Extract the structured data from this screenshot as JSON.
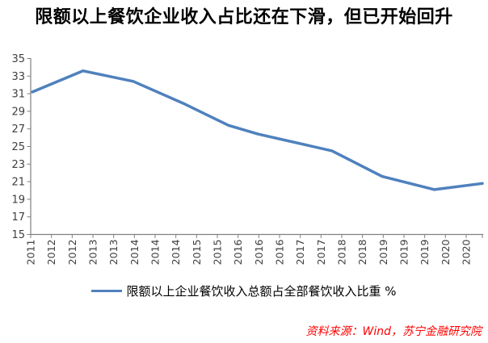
{
  "title": "限额以上餐饮企业收入占比还在下滑，但已开始回升",
  "source": "资料来源：Wind，苏宁金融研究院",
  "legend": {
    "label": "限额以上企业餐饮收入总额占全部餐饮收入比重 %"
  },
  "colors": {
    "line_blue": "#4F81BD",
    "axis_gray": "#808080",
    "tick_label": "#404040",
    "title_black": "#000000",
    "source_red": "#FF0000"
  },
  "chart_data": {
    "type": "line",
    "title": "限额以上餐饮企业收入占比还在下滑，但已开始回升",
    "xlabel": "",
    "ylabel": "",
    "ylim": [
      15,
      35
    ],
    "ytick_step": 2,
    "yticks": [
      35,
      33,
      31,
      29,
      27,
      25,
      23,
      21,
      19,
      17,
      15
    ],
    "x_tick_labels": [
      "2011",
      "2012",
      "2012",
      "2013",
      "2013",
      "2014",
      "2014",
      "2014",
      "2015",
      "2015",
      "2016",
      "2016",
      "2016",
      "2017",
      "2017",
      "2018",
      "2018",
      "2019",
      "2019",
      "2019",
      "2020",
      "2020"
    ],
    "grid": false,
    "legend_position": "bottom",
    "series": [
      {
        "name": "限额以上企业餐饮收入总额占全部餐饮收入比重 %",
        "color": "#4F81BD",
        "points": [
          {
            "x_frac": 0.004,
            "value": 31.2
          },
          {
            "x_frac": 0.116,
            "value": 33.6
          },
          {
            "x_frac": 0.227,
            "value": 32.4
          },
          {
            "x_frac": 0.338,
            "value": 29.9
          },
          {
            "x_frac": 0.438,
            "value": 27.4
          },
          {
            "x_frac": 0.504,
            "value": 26.4
          },
          {
            "x_frac": 0.667,
            "value": 24.5
          },
          {
            "x_frac": 0.778,
            "value": 21.6
          },
          {
            "x_frac": 0.894,
            "value": 20.1
          },
          {
            "x_frac": 1.0,
            "value": 20.8
          }
        ]
      }
    ]
  }
}
